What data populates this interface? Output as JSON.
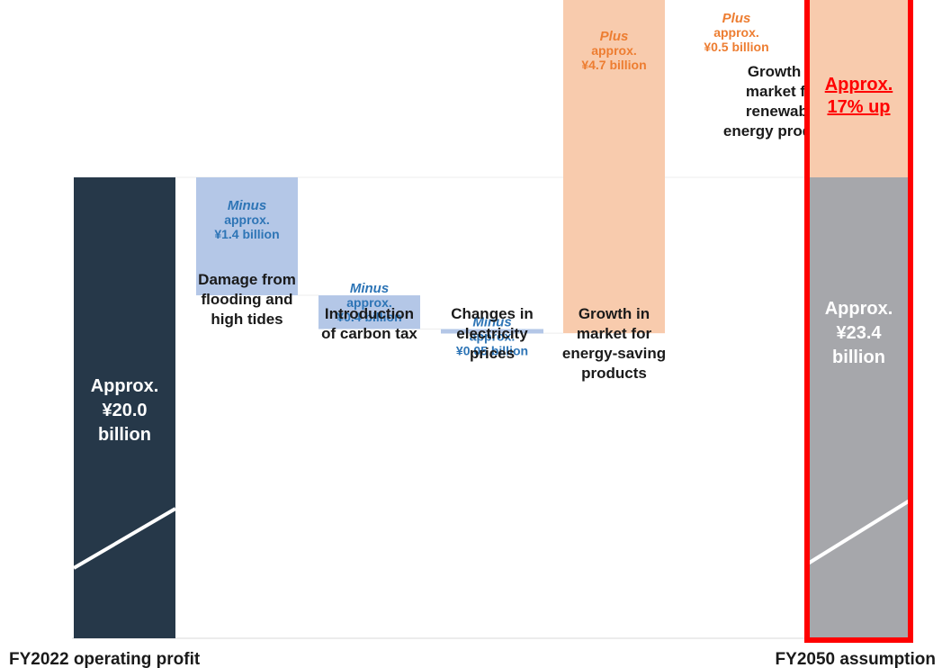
{
  "chart_data": {
    "type": "waterfall",
    "unit": "¥ billion",
    "ylim": [
      0,
      25
    ],
    "scale_break": true,
    "colors": {
      "start_bar": "#263849",
      "end_bar": "#a6a7ab",
      "decrease": "#b4c7e7",
      "increase": "#f8cbad",
      "minus_text": "#2e75b6",
      "plus_text": "#ed7d31",
      "emphasis": "#ff0000",
      "label_text": "#1a1a1a"
    },
    "start": {
      "value": 20.0,
      "inner_label": [
        "Approx.",
        "¥20.0",
        "billion"
      ],
      "axis_label": "FY2022 operating profit"
    },
    "steps": [
      {
        "direction": "minus",
        "value": -1.4,
        "value_label": [
          "Minus",
          "approx.",
          "¥1.4 billion"
        ],
        "category_label": [
          "Damage from",
          "flooding and",
          "high tides"
        ]
      },
      {
        "direction": "minus",
        "value": -0.4,
        "value_label": [
          "Minus",
          "approx.",
          "¥0.4 billion"
        ],
        "category_label": [
          "Introduction",
          "of carbon tax"
        ]
      },
      {
        "direction": "minus",
        "value": -0.05,
        "value_label": [
          "Minus",
          "approx.",
          "¥0.05 billion"
        ],
        "category_label": [
          "Changes in",
          "electricity",
          "prices"
        ]
      },
      {
        "direction": "plus",
        "value": 4.7,
        "value_label": [
          "Plus",
          "approx.",
          "¥4.7 billion"
        ],
        "category_label": [
          "Growth in",
          "market for",
          "energy-saving",
          "products"
        ]
      },
      {
        "direction": "plus",
        "value": 0.5,
        "value_label": [
          "Plus",
          "approx.",
          "¥0.5 billion"
        ],
        "category_label": [
          "Growth in",
          "market for",
          "renewable",
          "energy products"
        ]
      }
    ],
    "end": {
      "value": 23.4,
      "inner_label": [
        "Approx.",
        "¥23.4",
        "billion"
      ],
      "increase_label": [
        "Approx.",
        "17% up"
      ],
      "axis_label": "FY2050 assumption"
    }
  }
}
